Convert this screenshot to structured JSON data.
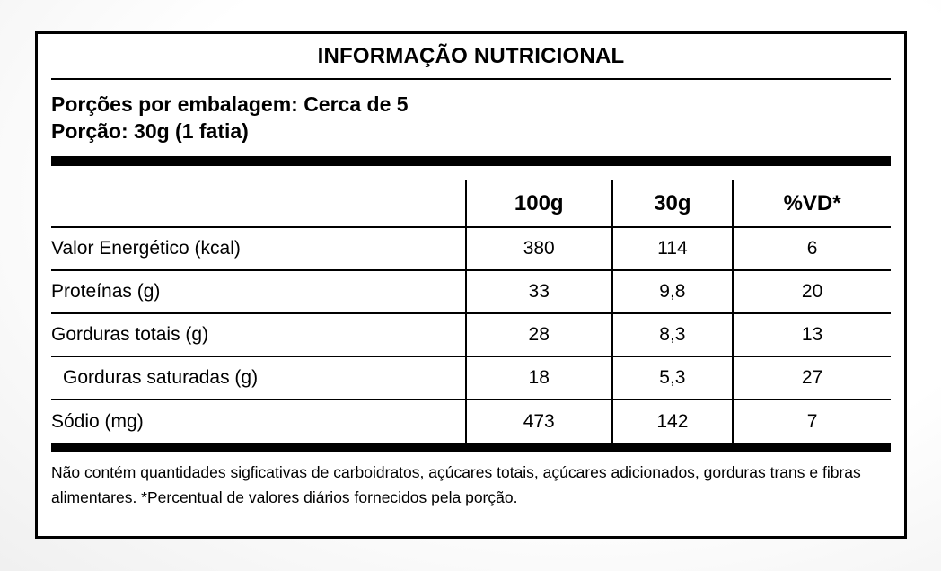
{
  "colors": {
    "text": "#000000",
    "card_background": "#ffffff",
    "border": "#000000",
    "page_background_edge": "#e4e4e4",
    "page_background_center": "#ffffff"
  },
  "label": {
    "title": "INFORMAÇÃO NUTRICIONAL",
    "servings_line": "Porções por embalagem: Cerca de 5",
    "portion_line": "Porção: 30g (1 fatia)",
    "table": {
      "columns": [
        "",
        "100g",
        "30g",
        "%VD*"
      ],
      "rows": [
        {
          "label": "Valor Energético (kcal)",
          "per_100g": "380",
          "per_30g": "114",
          "vd_percent": "6",
          "indent": false
        },
        {
          "label": "Proteínas (g)",
          "per_100g": "33",
          "per_30g": "9,8",
          "vd_percent": "20",
          "indent": false
        },
        {
          "label": "Gorduras totais (g)",
          "per_100g": "28",
          "per_30g": "8,3",
          "vd_percent": "13",
          "indent": false
        },
        {
          "label": "Gorduras saturadas (g)",
          "per_100g": "18",
          "per_30g": "5,3",
          "vd_percent": "27",
          "indent": true
        },
        {
          "label": "Sódio (mg)",
          "per_100g": "473",
          "per_30g": "142",
          "vd_percent": "7",
          "indent": false
        }
      ]
    },
    "footnote": "Não contém quantidades sigficativas de carboidratos, açúcares totais, açúcares adicionados, gorduras trans e fibras alimentares. *Percentual de valores diários fornecidos pela porção."
  }
}
